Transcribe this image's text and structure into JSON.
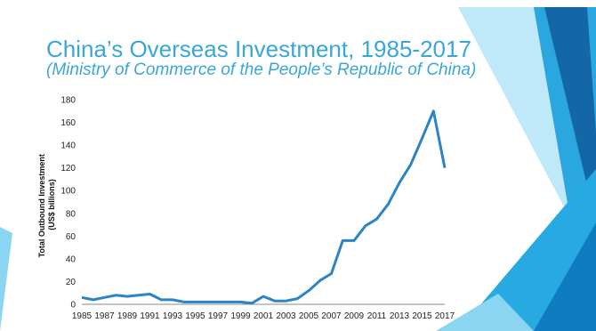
{
  "slide": {
    "title": "China’s Overseas Investment, 1985-2017",
    "subtitle": "(Ministry of Commerce of the People’s Republic of China)",
    "colors": {
      "accent": "#3aa6d8",
      "line": "#2a84c6",
      "decor_light": "#8ad6f2",
      "decor_mid": "#27a9e1",
      "decor_dark": "#1467a6"
    }
  },
  "chart_data": {
    "type": "line",
    "ylabel_line1": "Total Outbound Investment",
    "ylabel_line2": "(US$ billions)",
    "xlabel": "",
    "ylim": [
      0,
      180
    ],
    "yticks": [
      0,
      20,
      40,
      60,
      80,
      100,
      120,
      140,
      160,
      180
    ],
    "xticks": [
      "1985",
      "1987",
      "1989",
      "1991",
      "1993",
      "1995",
      "1997",
      "1999",
      "2001",
      "2003",
      "2005",
      "2007",
      "2009",
      "2011",
      "2013",
      "2015",
      "2017"
    ],
    "grid": false,
    "x": [
      1985,
      1986,
      1987,
      1988,
      1989,
      1990,
      1991,
      1992,
      1993,
      1994,
      1995,
      1996,
      1997,
      1998,
      1999,
      2000,
      2001,
      2002,
      2003,
      2004,
      2005,
      2006,
      2007,
      2008,
      2009,
      2010,
      2011,
      2012,
      2013,
      2014,
      2015,
      2016,
      2017
    ],
    "series": [
      {
        "values": [
          6,
          4,
          6,
          8,
          7,
          8,
          9,
          4,
          4,
          2,
          2,
          2,
          2,
          2,
          2,
          1,
          7,
          3,
          3,
          5,
          12,
          21,
          27,
          56,
          56,
          69,
          75,
          88,
          107,
          123,
          146,
          170,
          120
        ]
      }
    ]
  }
}
